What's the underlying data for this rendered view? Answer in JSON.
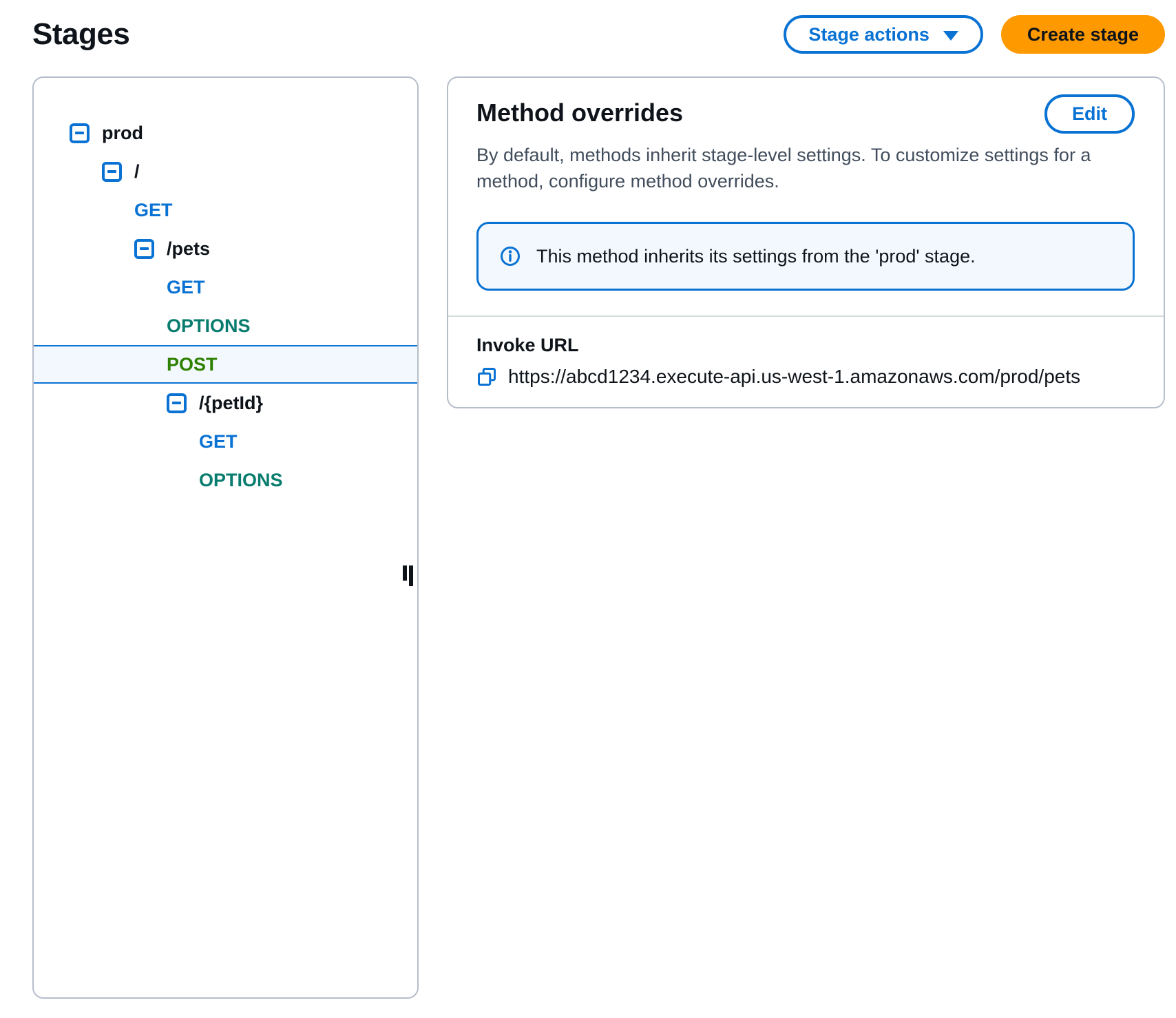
{
  "page_title": "Stages",
  "header": {
    "stage_actions_label": "Stage actions",
    "create_stage_label": "Create stage"
  },
  "tree": {
    "rows": [
      {
        "type": "resource",
        "label": "prod",
        "level": 0,
        "name": "prod",
        "expanded": true
      },
      {
        "type": "resource",
        "label": "/",
        "level": 1,
        "name": "root",
        "expanded": true
      },
      {
        "type": "method",
        "label": "GET",
        "level": 2,
        "method": "get",
        "name": "root-get"
      },
      {
        "type": "resource",
        "label": "/pets",
        "level": 2,
        "name": "pets",
        "expanded": true
      },
      {
        "type": "method",
        "label": "GET",
        "level": 3,
        "method": "get",
        "name": "pets-get"
      },
      {
        "type": "method",
        "label": "OPTIONS",
        "level": 3,
        "method": "options",
        "name": "pets-options"
      },
      {
        "type": "method",
        "label": "POST",
        "level": 3,
        "method": "post",
        "name": "pets-post",
        "selected": true
      },
      {
        "type": "resource",
        "label": "/{petId}",
        "level": 3,
        "name": "petid",
        "expanded": true
      },
      {
        "type": "method",
        "label": "GET",
        "level": 4,
        "method": "get",
        "name": "petid-get"
      },
      {
        "type": "method",
        "label": "OPTIONS",
        "level": 4,
        "method": "options",
        "name": "petid-options"
      }
    ]
  },
  "overrides": {
    "title": "Method overrides",
    "edit_label": "Edit",
    "description": "By default, methods inherit stage-level settings. To customize settings for a method, configure method overrides.",
    "alert_text": "This method inherits its settings from the 'prod' stage.",
    "invoke_url_label": "Invoke URL",
    "invoke_url": "https://abcd1234.execute-api.us-west-1.amazonaws.com/prod/pets"
  },
  "icons": {
    "collapse": "minus-square-icon",
    "dropdown": "caret-down-icon",
    "info": "info-circle-icon",
    "copy": "copy-icon",
    "resize": "resize-grip-icon"
  },
  "colors": {
    "accent_blue": "#0972d3",
    "method_get": "#0972d3",
    "method_options": "#087c6e",
    "method_post": "#2e8000",
    "primary_button_bg": "#ff9900",
    "selected_row_bg": "#f2f8fd",
    "alert_bg": "#f2f8fd",
    "panel_border": "#b6becb",
    "heading_text": "#0f141a",
    "body_text": "#414d5c"
  }
}
